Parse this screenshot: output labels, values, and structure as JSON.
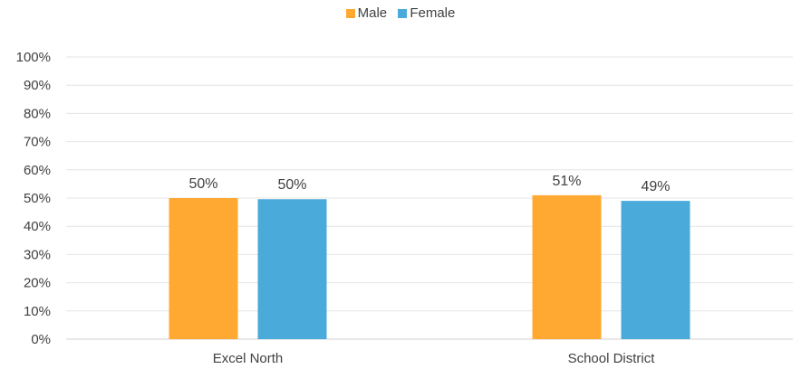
{
  "chart_data": {
    "type": "bar",
    "categories": [
      "Excel North",
      "School District"
    ],
    "series": [
      {
        "name": "Male",
        "color": "#FFA832",
        "values": [
          50,
          51
        ],
        "labels": [
          "50%",
          "51%"
        ]
      },
      {
        "name": "Female",
        "color": "#4AABDB",
        "values": [
          49.6,
          49
        ],
        "labels": [
          "50%",
          "49%"
        ]
      }
    ],
    "ylim": [
      0,
      100
    ],
    "y_ticks": [
      "0%",
      "10%",
      "20%",
      "30%",
      "40%",
      "50%",
      "60%",
      "70%",
      "80%",
      "90%",
      "100%"
    ],
    "grid": true,
    "legend_position": "top-center",
    "title": "",
    "xlabel": "",
    "ylabel": ""
  }
}
